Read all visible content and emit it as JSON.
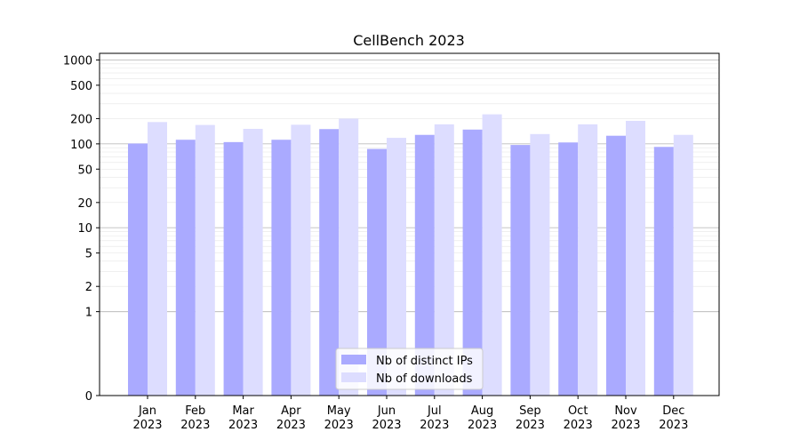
{
  "chart_data": {
    "type": "bar",
    "title": "CellBench 2023",
    "xlabel": "",
    "ylabel": "",
    "scale": "symlog",
    "ylim": [
      0,
      1200
    ],
    "yticks": [
      0,
      1,
      2,
      5,
      10,
      20,
      50,
      100,
      200,
      500,
      1000
    ],
    "ytick_labels": [
      "0",
      "1",
      "2",
      "5",
      "10",
      "20",
      "50",
      "100",
      "200",
      "500",
      "1000"
    ],
    "categories": [
      "Jan\n2023",
      "Feb\n2023",
      "Mar\n2023",
      "Apr\n2023",
      "May\n2023",
      "Jun\n2023",
      "Jul\n2023",
      "Aug\n2023",
      "Sep\n2023",
      "Oct\n2023",
      "Nov\n2023",
      "Dec\n2023"
    ],
    "series": [
      {
        "name": "Nb of distinct IPs",
        "color": "#aaaaff",
        "values": [
          101,
          112,
          105,
          112,
          150,
          87,
          128,
          148,
          97,
          104,
          125,
          92
        ]
      },
      {
        "name": "Nb of downloads",
        "color": "#ddddff",
        "values": [
          182,
          168,
          151,
          169,
          200,
          118,
          171,
          225,
          131,
          171,
          188,
          128
        ]
      }
    ],
    "grid": true,
    "legend_position": "bottom-center"
  }
}
